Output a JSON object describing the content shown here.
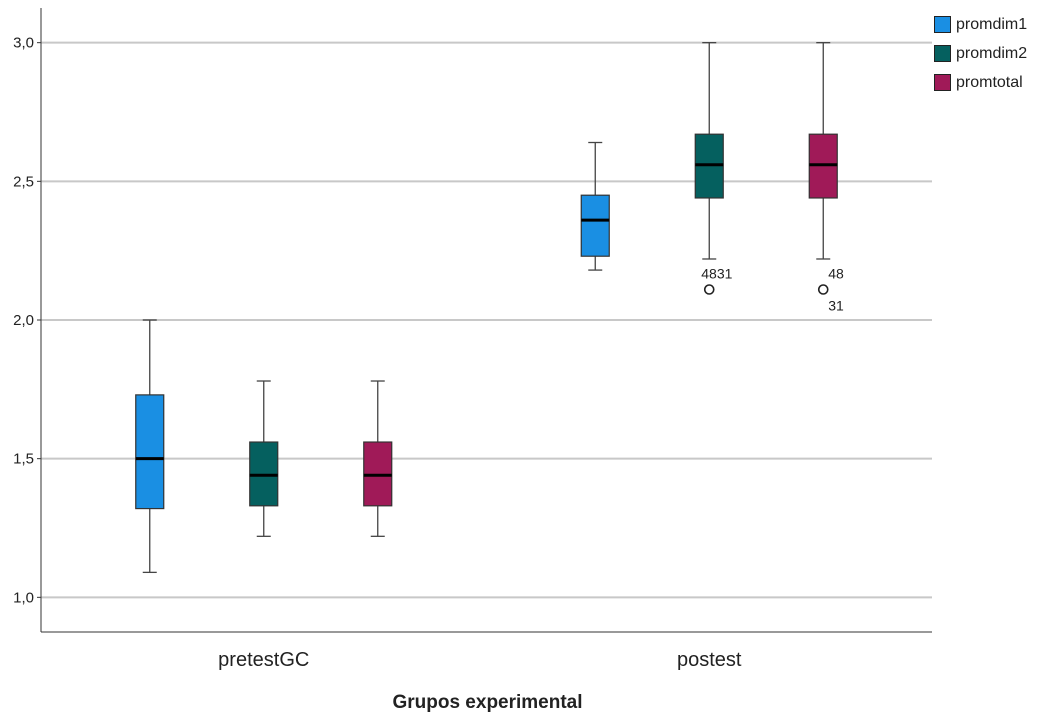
{
  "chart_data": {
    "type": "boxplot",
    "xlabel": "Grupos experimental",
    "ylabel": "",
    "ylim": [
      0.875,
      3.125
    ],
    "yticks": [
      1.0,
      1.5,
      2.0,
      2.5,
      3.0
    ],
    "ytick_labels": [
      "1,0",
      "1,5",
      "2,0",
      "2,5",
      "3,0"
    ],
    "grid": "horizontal",
    "legend_position": "top-right",
    "categories": [
      "pretestGC",
      "postest"
    ],
    "series": [
      {
        "name": "promdim1",
        "color": "#1a8fe3",
        "boxes": [
          {
            "category": "pretestGC",
            "min": 1.09,
            "q1": 1.32,
            "median": 1.5,
            "q3": 1.73,
            "max": 2.0,
            "outliers": []
          },
          {
            "category": "postest",
            "min": 2.18,
            "q1": 2.23,
            "median": 2.36,
            "q3": 2.45,
            "max": 2.64,
            "outliers": []
          }
        ]
      },
      {
        "name": "promdim2",
        "color": "#05605f",
        "boxes": [
          {
            "category": "pretestGC",
            "min": 1.22,
            "q1": 1.33,
            "median": 1.44,
            "q3": 1.56,
            "max": 1.78,
            "outliers": []
          },
          {
            "category": "postest",
            "min": 2.22,
            "q1": 2.44,
            "median": 2.56,
            "q3": 2.67,
            "max": 3.0,
            "outliers": [
              {
                "value": 2.11,
                "label": "4831"
              }
            ]
          }
        ]
      },
      {
        "name": "promtotal",
        "color": "#a01a58",
        "boxes": [
          {
            "category": "pretestGC",
            "min": 1.22,
            "q1": 1.33,
            "median": 1.44,
            "q3": 1.56,
            "max": 1.78,
            "outliers": []
          },
          {
            "category": "postest",
            "min": 2.22,
            "q1": 2.44,
            "median": 2.56,
            "q3": 2.67,
            "max": 3.0,
            "outliers": [
              {
                "value": 2.11,
                "label": "48",
                "label2": "31"
              }
            ]
          }
        ]
      }
    ]
  }
}
